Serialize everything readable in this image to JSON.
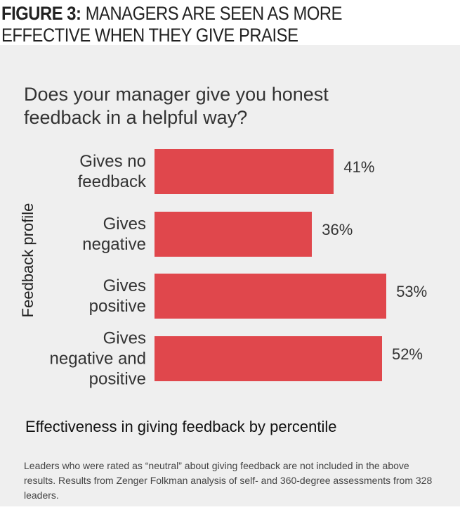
{
  "chart_data": {
    "type": "hbar",
    "title_label": "FIGURE 3:",
    "title": "MANAGERS ARE SEEN AS MORE EFFECTIVE WHEN THEY GIVE PRAISE",
    "subtitle": "Does your manager give you honest feedback in a helpful way?",
    "ylabel": "Feedback profile",
    "xlabel": "Effectiveness in giving feedback by percentile",
    "note": "Leaders who were rated as “neutral” about giving feedback are not included in the above results. Results from Zenger Folkman analysis of self- and 360-degree assessments from 328 leaders.",
    "categories": [
      "Gives no\nfeedback",
      "Gives\nnegative",
      "Gives\npositive",
      "Gives\nnegative and\npositive"
    ],
    "values": [
      41,
      36,
      53,
      52
    ],
    "value_labels": [
      "41%",
      "36%",
      "53%",
      "52%"
    ],
    "color": "#e0474c"
  }
}
